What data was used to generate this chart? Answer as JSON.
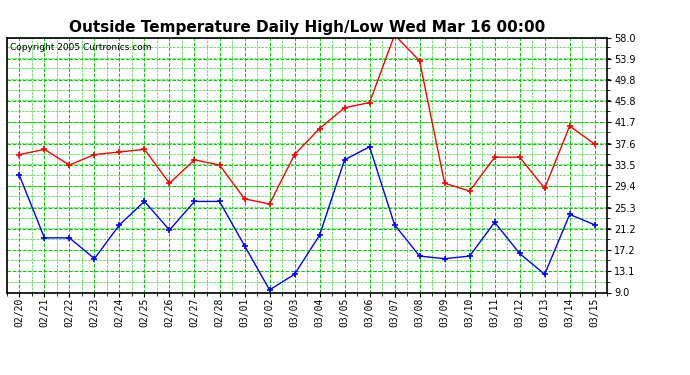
{
  "title": "Outside Temperature Daily High/Low Wed Mar 16 00:00",
  "copyright": "Copyright 2005 Curtronics.com",
  "x_labels": [
    "02/20",
    "02/21",
    "02/22",
    "02/23",
    "02/24",
    "02/25",
    "02/26",
    "02/27",
    "02/28",
    "03/01",
    "03/02",
    "03/03",
    "03/04",
    "03/05",
    "03/06",
    "03/07",
    "03/08",
    "03/09",
    "03/10",
    "03/11",
    "03/12",
    "03/13",
    "03/14",
    "03/15"
  ],
  "high_values": [
    35.5,
    36.5,
    33.5,
    35.5,
    36.0,
    36.5,
    30.0,
    34.5,
    33.5,
    27.0,
    26.0,
    35.5,
    40.5,
    44.5,
    45.5,
    58.5,
    53.5,
    30.0,
    28.5,
    35.0,
    35.0,
    29.0,
    41.0,
    37.5
  ],
  "low_values": [
    31.5,
    19.5,
    19.5,
    15.5,
    22.0,
    26.5,
    21.0,
    26.5,
    26.5,
    18.0,
    9.5,
    12.5,
    20.0,
    34.5,
    37.0,
    22.0,
    16.0,
    15.5,
    16.0,
    22.5,
    16.5,
    12.5,
    24.0,
    22.0
  ],
  "high_color": "#ff0000",
  "low_color": "#0000ff",
  "bg_color": "#ffffff",
  "plot_bg_color": "#ffffff",
  "grid_color": "#00cc00",
  "title_fontsize": 11,
  "tick_fontsize": 7,
  "ylim": [
    9.0,
    58.0
  ],
  "yticks": [
    9.0,
    13.1,
    17.2,
    21.2,
    25.3,
    29.4,
    33.5,
    37.6,
    41.7,
    45.8,
    49.8,
    53.9,
    58.0
  ]
}
